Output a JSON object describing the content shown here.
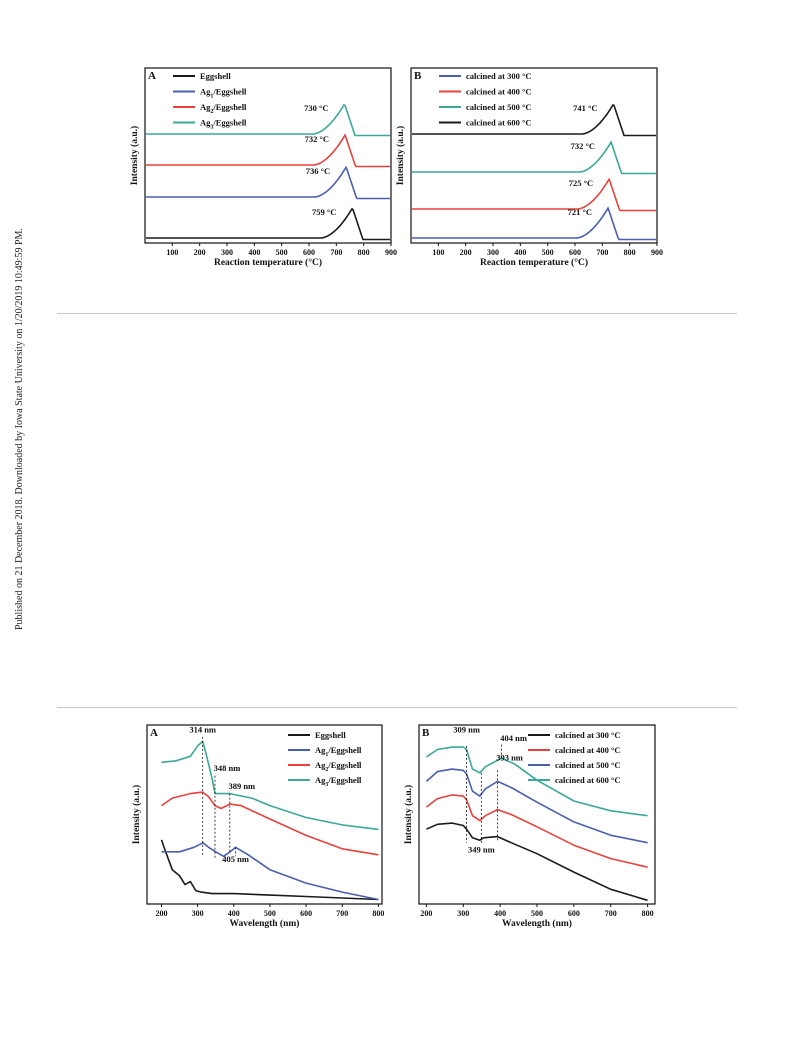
{
  "side_note": "Published on 21 December 2018. Downloaded by Iowa State University on 1/20/2019 10:49:59 PM.",
  "colors": {
    "black": "#1a1a1a",
    "blue": "#4a5fb0",
    "red": "#e8423c",
    "teal": "#3aa99a"
  },
  "chart_data": [
    {
      "type": "line",
      "panel": "A",
      "xlabel": "Reaction temperature (°C)",
      "ylabel": "Intensity (a.u.)",
      "xlim": [
        0,
        900
      ],
      "xticks": [
        100,
        200,
        300,
        400,
        500,
        600,
        700,
        800,
        900
      ],
      "legend": "top-left",
      "series": [
        {
          "name": "Eggshell",
          "color": "black",
          "peak_x": 759,
          "label": "759 °C"
        },
        {
          "name": "Ag1/Eggshell",
          "color": "blue",
          "peak_x": 736,
          "label": "736 °C"
        },
        {
          "name": "Ag2/Eggshell",
          "color": "red",
          "peak_x": 732,
          "label": "732 °C"
        },
        {
          "name": "Ag3/Eggshell",
          "color": "teal",
          "peak_x": 730,
          "label": "730 °C"
        }
      ]
    },
    {
      "type": "line",
      "panel": "B",
      "xlabel": "Reaction temperature (°C)",
      "ylabel": "Intensity (a.u.)",
      "xlim": [
        0,
        900
      ],
      "xticks": [
        100,
        200,
        300,
        400,
        500,
        600,
        700,
        800,
        900
      ],
      "legend": "top-left",
      "series": [
        {
          "name": "calcined at 300 °C",
          "color": "blue",
          "peak_x": 721,
          "label": "721 °C"
        },
        {
          "name": "calcined at 400 °C",
          "color": "red",
          "peak_x": 725,
          "label": "725 °C"
        },
        {
          "name": "calcined at 500 °C",
          "color": "teal",
          "peak_x": 732,
          "label": "732 °C"
        },
        {
          "name": "calcined at 600 °C",
          "color": "black",
          "peak_x": 741,
          "label": "741 °C"
        }
      ]
    },
    {
      "type": "line",
      "panel": "A",
      "xlabel": "Wavelength (nm)",
      "ylabel": "Intensity (a.u.)",
      "xlim": [
        160,
        810
      ],
      "xticks": [
        200,
        300,
        400,
        500,
        600,
        700,
        800
      ],
      "legend": "top-right",
      "annotations": [
        "314 nm",
        "348 nm",
        "389 nm",
        "405 nm"
      ],
      "series": [
        {
          "name": "Eggshell",
          "color": "black",
          "x": [
            200,
            210,
            230,
            250,
            265,
            280,
            295,
            310,
            340,
            400,
            500,
            600,
            700,
            800
          ],
          "y": [
            0.81,
            0.74,
            0.61,
            0.57,
            0.51,
            0.53,
            0.47,
            0.46,
            0.45,
            0.45,
            0.44,
            0.43,
            0.42,
            0.41
          ]
        },
        {
          "name": "Ag1/Eggshell",
          "color": "blue",
          "x": [
            200,
            250,
            290,
            315,
            330,
            350,
            372,
            390,
            405,
            440,
            500,
            600,
            700,
            800
          ],
          "y": [
            0.73,
            0.73,
            0.76,
            0.79,
            0.76,
            0.73,
            0.7,
            0.73,
            0.76,
            0.71,
            0.61,
            0.52,
            0.46,
            0.41
          ]
        },
        {
          "name": "Ag2/Eggshell",
          "color": "red",
          "x": [
            200,
            230,
            280,
            314,
            330,
            348,
            365,
            389,
            420,
            500,
            600,
            700,
            800
          ],
          "y": [
            1.04,
            1.09,
            1.12,
            1.13,
            1.1,
            1.04,
            1.02,
            1.05,
            1.04,
            0.95,
            0.84,
            0.75,
            0.71
          ]
        },
        {
          "name": "Ag3/Eggshell",
          "color": "teal",
          "x": [
            200,
            240,
            280,
            300,
            314,
            325,
            340,
            348,
            370,
            389,
            450,
            500,
            600,
            700,
            800
          ],
          "y": [
            1.33,
            1.34,
            1.37,
            1.44,
            1.47,
            1.37,
            1.22,
            1.12,
            1.12,
            1.12,
            1.09,
            1.04,
            0.96,
            0.91,
            0.88
          ]
        }
      ]
    },
    {
      "type": "line",
      "panel": "B",
      "xlabel": "Wavelength (nm)",
      "ylabel": "Intensity (a.u.)",
      "xlim": [
        180,
        820
      ],
      "xticks": [
        200,
        300,
        400,
        500,
        600,
        700,
        800
      ],
      "legend": "top-right",
      "annotations": [
        "309 nm",
        "349 nm",
        "393 nm",
        "404 nm"
      ],
      "series": [
        {
          "name": "calcined at 300 °C",
          "color": "black",
          "x": [
            200,
            230,
            270,
            300,
            309,
            325,
            345,
            355,
            393,
            430,
            500,
            600,
            700,
            800
          ],
          "y": [
            0.71,
            0.75,
            0.76,
            0.74,
            0.71,
            0.64,
            0.62,
            0.64,
            0.65,
            0.6,
            0.51,
            0.36,
            0.22,
            0.13
          ]
        },
        {
          "name": "calcined at 400 °C",
          "color": "red",
          "x": [
            200,
            230,
            270,
            300,
            309,
            325,
            345,
            360,
            393,
            430,
            500,
            600,
            700,
            800
          ],
          "y": [
            0.89,
            0.96,
            0.99,
            0.98,
            0.95,
            0.82,
            0.78,
            0.82,
            0.87,
            0.83,
            0.73,
            0.58,
            0.47,
            0.4
          ]
        },
        {
          "name": "calcined at 500 °C",
          "color": "blue",
          "x": [
            200,
            230,
            270,
            300,
            309,
            325,
            345,
            360,
            393,
            430,
            500,
            600,
            700,
            800
          ],
          "y": [
            1.1,
            1.18,
            1.2,
            1.19,
            1.16,
            1.02,
            0.98,
            1.04,
            1.1,
            1.05,
            0.93,
            0.77,
            0.66,
            0.6
          ]
        },
        {
          "name": "calcined at 600 °C",
          "color": "teal",
          "x": [
            200,
            230,
            270,
            300,
            309,
            325,
            345,
            360,
            404,
            440,
            500,
            600,
            700,
            800
          ],
          "y": [
            1.3,
            1.36,
            1.38,
            1.38,
            1.36,
            1.2,
            1.17,
            1.22,
            1.29,
            1.24,
            1.11,
            0.94,
            0.86,
            0.82
          ]
        }
      ]
    }
  ]
}
